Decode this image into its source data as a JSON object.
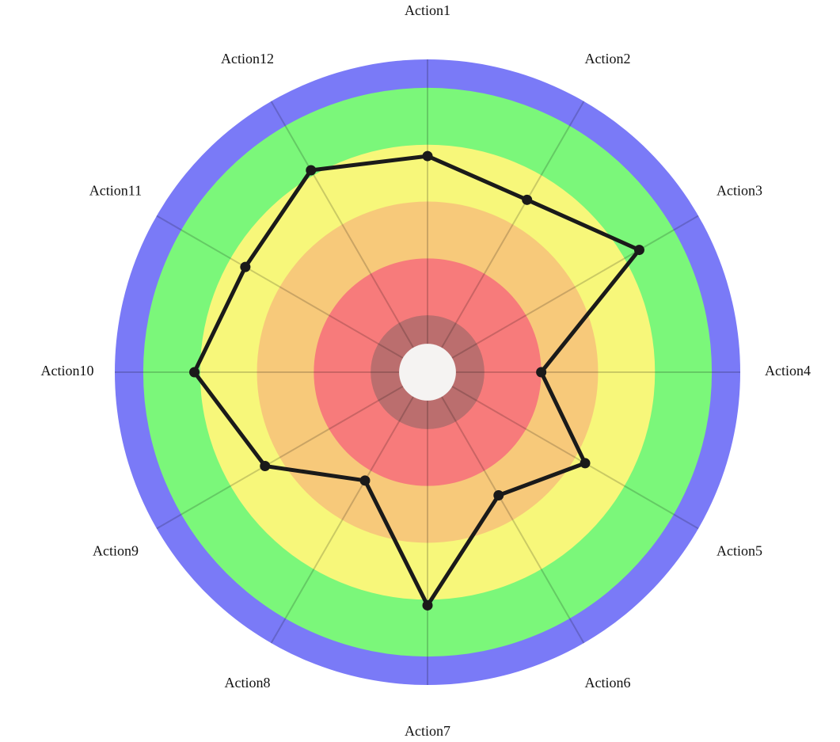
{
  "chart_data": {
    "type": "radar",
    "title": "",
    "categories": [
      "Action1",
      "Action2",
      "Action3",
      "Action4",
      "Action5",
      "Action6",
      "Action7",
      "Action8",
      "Action9",
      "Action10",
      "Action11",
      "Action12"
    ],
    "series": [
      {
        "values": [
          3.8,
          3.5,
          4.3,
          2.0,
          3.2,
          2.5,
          4.1,
          2.2,
          3.3,
          4.1,
          3.7,
          4.1
        ],
        "color": "#1a1a1a"
      }
    ],
    "rlim": [
      0,
      5.5
    ],
    "hole_radius": 0.5,
    "bands": [
      {
        "from": 0.5,
        "to": 1.0,
        "color": "#bb6e6e"
      },
      {
        "from": 1.0,
        "to": 2.0,
        "color": "#f77b7b"
      },
      {
        "from": 2.0,
        "to": 3.0,
        "color": "#f7c97a"
      },
      {
        "from": 3.0,
        "to": 4.0,
        "color": "#f7f77a"
      },
      {
        "from": 4.0,
        "to": 5.0,
        "color": "#7bf77a"
      },
      {
        "from": 5.0,
        "to": 5.5,
        "color": "#7a7af7"
      }
    ],
    "hole_color": "#f5f3f2",
    "grid": true
  }
}
